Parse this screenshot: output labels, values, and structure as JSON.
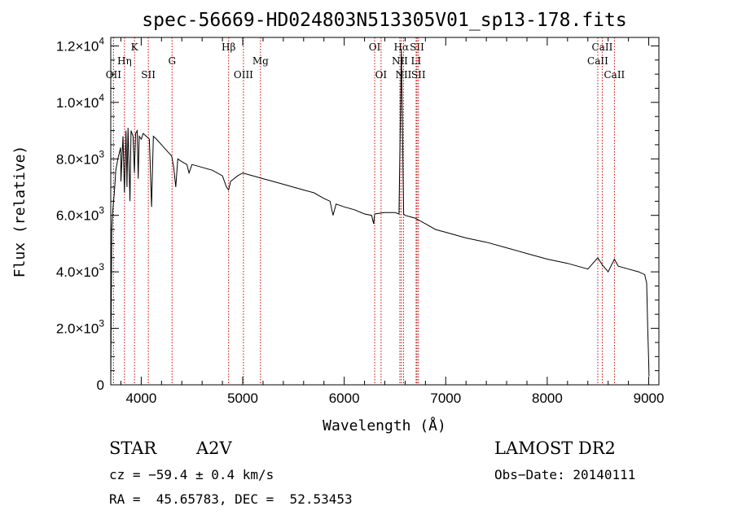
{
  "chart_data": {
    "type": "line",
    "title": "spec-56669-HD024803N513305V01_sp13-178.fits",
    "xlabel": "Wavelength (Å)",
    "ylabel": "Flux (relative)",
    "xlim": [
      3700,
      9100
    ],
    "ylim": [
      0,
      12300
    ],
    "grid": false,
    "x_ticks": [
      4000,
      5000,
      6000,
      7000,
      8000,
      9000
    ],
    "x_tick_labels": [
      "4000",
      "5000",
      "6000",
      "7000",
      "8000",
      "9000"
    ],
    "y_ticks": [
      {
        "value": 0,
        "mantissa": "0",
        "exp": ""
      },
      {
        "value": 2000,
        "mantissa": "2.0×10",
        "exp": "3"
      },
      {
        "value": 4000,
        "mantissa": "4.0×10",
        "exp": "3"
      },
      {
        "value": 6000,
        "mantissa": "6.0×10",
        "exp": "3"
      },
      {
        "value": 8000,
        "mantissa": "8.0×10",
        "exp": "3"
      },
      {
        "value": 10000,
        "mantissa": "1.0×10",
        "exp": "4"
      },
      {
        "value": 12000,
        "mantissa": "1.2×10",
        "exp": "4"
      }
    ],
    "series": [
      {
        "color": "#000000",
        "x": [
          3700,
          3705,
          3710,
          3720,
          3735,
          3750,
          3770,
          3797,
          3800,
          3820,
          3835,
          3850,
          3860,
          3870,
          3889,
          3900,
          3920,
          3933,
          3945,
          3960,
          3970,
          3980,
          4000,
          4020,
          4050,
          4080,
          4102,
          4120,
          4150,
          4200,
          4250,
          4300,
          4320,
          4340,
          4360,
          4400,
          4450,
          4471,
          4500,
          4600,
          4700,
          4800,
          4840,
          4861,
          4880,
          4950,
          5000,
          5100,
          5200,
          5300,
          5400,
          5500,
          5600,
          5700,
          5800,
          5860,
          5890,
          5920,
          6000,
          6100,
          6200,
          6270,
          6290,
          6300,
          6400,
          6500,
          6540,
          6563,
          6585,
          6600,
          6700,
          6800,
          6900,
          7000,
          7200,
          7400,
          7600,
          7800,
          8000,
          8200,
          8400,
          8498,
          8542,
          8600,
          8662,
          8700,
          8800,
          8900,
          8960,
          8980,
          8990,
          9000,
          9003
        ],
        "y": [
          100,
          2800,
          5500,
          6200,
          6800,
          7600,
          8000,
          8400,
          7200,
          8800,
          6800,
          9000,
          7000,
          9100,
          6500,
          9000,
          8800,
          7500,
          8900,
          9000,
          7300,
          8800,
          8700,
          8900,
          8800,
          8700,
          6300,
          8800,
          8700,
          8500,
          8300,
          8100,
          7700,
          7000,
          8000,
          7900,
          7800,
          7500,
          7800,
          7700,
          7600,
          7400,
          7000,
          6900,
          7200,
          7400,
          7500,
          7400,
          7300,
          7200,
          7100,
          7000,
          6900,
          6800,
          6600,
          6500,
          6000,
          6400,
          6300,
          6200,
          6050,
          6000,
          5700,
          6050,
          6100,
          6100,
          6050,
          11900,
          6050,
          6000,
          5900,
          5700,
          5500,
          5400,
          5200,
          5050,
          4850,
          4650,
          4450,
          4300,
          4100,
          4500,
          4250,
          4000,
          4450,
          4200,
          4100,
          4000,
          3900,
          3600,
          2000,
          800,
          300
        ]
      }
    ],
    "line_markers": [
      {
        "label": "OII",
        "x": 3727,
        "row": 3
      },
      {
        "label": "Hη",
        "x": 3835,
        "row": 2
      },
      {
        "label": "K",
        "x": 3934,
        "row": 1
      },
      {
        "label": "SII",
        "x": 4070,
        "row": 3
      },
      {
        "label": "G",
        "x": 4304,
        "row": 2
      },
      {
        "label": "Hβ",
        "x": 4861,
        "row": 1
      },
      {
        "label": "OIII",
        "x": 5007,
        "row": 3
      },
      {
        "label": "Mg",
        "x": 5175,
        "row": 2
      },
      {
        "label": "OI",
        "x": 6300,
        "row": 1
      },
      {
        "label": "OI",
        "x": 6363,
        "row": 3
      },
      {
        "label": "Hα",
        "x": 6563,
        "row": 1
      },
      {
        "label": "NII",
        "x": 6548,
        "row": 2
      },
      {
        "label": "NII",
        "x": 6584,
        "row": 3
      },
      {
        "label": "SII",
        "x": 6717,
        "row": 1
      },
      {
        "label": "LI",
        "x": 6708,
        "row": 2
      },
      {
        "label": "SII",
        "x": 6731,
        "row": 3
      },
      {
        "label": "CaII",
        "x": 8542,
        "row": 1
      },
      {
        "label": "CaII",
        "x": 8498,
        "row": 2
      },
      {
        "label": "CaII",
        "x": 8662,
        "row": 3
      }
    ]
  },
  "info": {
    "object_class": "STAR",
    "subclass": "A2V",
    "survey": "LAMOST DR2",
    "cz": "cz = −59.4 ± 0.4 km/s",
    "obs_date": "Obs−Date: 20140111",
    "coords": "RA =  45.65783, DEC =  52.53453"
  }
}
